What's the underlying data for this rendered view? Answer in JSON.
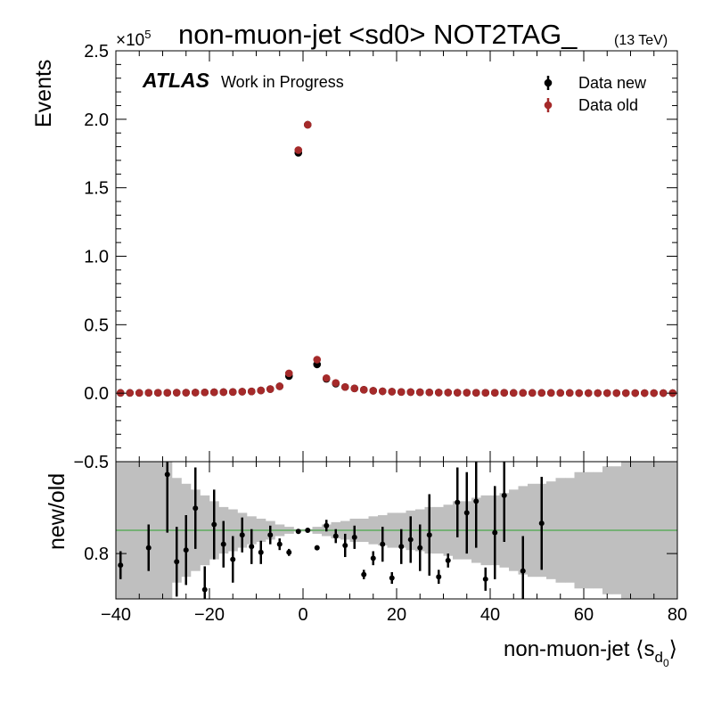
{
  "chart_data": [
    {
      "type": "scatter",
      "title": "non-muon-jet <sd0> NOT2TAG_",
      "title_suffix": "(13 TeV)",
      "ylabel": "Events",
      "y_multiplier": {
        "text": "×10",
        "power": "5"
      },
      "annotations": [
        "ATLAS",
        "Work in Progress"
      ],
      "legend": "upper right",
      "xlim": [
        -40,
        80
      ],
      "xticks": [
        {
          "value": -40,
          "label": "−40"
        },
        {
          "value": -20,
          "label": "−20"
        },
        0,
        20,
        40,
        60,
        80
      ],
      "ylim": [
        -0.5,
        2.5
      ],
      "yticks": [
        {
          "value": -0.5,
          "label": "−0.5"
        },
        {
          "value": 0,
          "label": "0.0"
        },
        0.5,
        {
          "value": 1,
          "label": "1.0"
        },
        1.5,
        {
          "value": 2,
          "label": "2.0"
        },
        2.5
      ],
      "x": [
        -39,
        -37,
        -35,
        -33,
        -31,
        -29,
        -27,
        -25,
        -23,
        -21,
        -19,
        -17,
        -15,
        -13,
        -11,
        -9,
        -7,
        -5,
        -3,
        -1,
        1,
        3,
        5,
        7,
        9,
        11,
        13,
        15,
        17,
        19,
        21,
        23,
        25,
        27,
        29,
        31,
        33,
        35,
        37,
        39,
        41,
        43,
        45,
        47,
        49,
        51,
        53,
        55,
        57,
        59,
        61,
        63,
        65,
        67,
        69,
        71,
        73,
        75,
        77,
        79
      ],
      "series": [
        {
          "name": "Data new",
          "color": "#000000",
          "values": [
            0.002,
            0.002,
            0.002,
            0.003,
            0.003,
            0.003,
            0.004,
            0.004,
            0.005,
            0.006,
            0.007,
            0.008,
            0.009,
            0.011,
            0.013,
            0.02,
            0.03,
            0.05,
            0.125,
            1.755,
            1.96,
            0.21,
            0.105,
            0.07,
            0.045,
            0.035,
            0.025,
            0.018,
            0.014,
            0.011,
            0.009,
            0.008,
            0.007,
            0.006,
            0.005,
            0.005,
            0.004,
            0.004,
            0.003,
            0.003,
            0.003,
            0.003,
            0.002,
            0.002,
            0.002,
            0.002,
            0.002,
            0.002,
            0.002,
            0.001,
            0.001,
            0.001,
            0.001,
            0.001,
            0.001,
            0.001,
            0.001,
            0.001,
            0.001,
            0.001
          ]
        },
        {
          "name": "Data old",
          "color": "#a52a2a",
          "values": [
            0.002,
            0.002,
            0.002,
            0.003,
            0.003,
            0.003,
            0.004,
            0.004,
            0.005,
            0.006,
            0.007,
            0.008,
            0.009,
            0.011,
            0.013,
            0.02,
            0.03,
            0.05,
            0.145,
            1.775,
            1.96,
            0.245,
            0.11,
            0.075,
            0.045,
            0.035,
            0.025,
            0.018,
            0.014,
            0.011,
            0.009,
            0.008,
            0.007,
            0.006,
            0.005,
            0.005,
            0.004,
            0.004,
            0.003,
            0.003,
            0.003,
            0.003,
            0.002,
            0.002,
            0.002,
            0.002,
            0.002,
            0.002,
            0.002,
            0.001,
            0.001,
            0.001,
            0.001,
            0.001,
            0.001,
            0.001,
            0.001,
            0.001,
            0.001,
            0.001
          ]
        }
      ]
    },
    {
      "type": "ratio",
      "ylabel": "new/old",
      "xlabel": {
        "text": "non-muon-jet ⟨s",
        "sub": "d",
        "subsub": "0",
        "close": "⟩"
      },
      "xlim": [
        -40,
        80
      ],
      "xticks": [
        {
          "value": -40,
          "label": "−40"
        },
        {
          "value": -20,
          "label": "−20"
        },
        0,
        20,
        40,
        60,
        80
      ],
      "ylim": [
        0.41,
        1.59
      ],
      "yticks": [
        0.8
      ],
      "reference": 1,
      "reference_color": "#2ca02c",
      "color": "#000000",
      "band_color": "#bfbfbf",
      "x": [
        -39,
        -37,
        -35,
        -33,
        -31,
        -29,
        -27,
        -25,
        -23,
        -21,
        -19,
        -17,
        -15,
        -13,
        -11,
        -9,
        -7,
        -5,
        -3,
        -1,
        1,
        3,
        5,
        7,
        9,
        11,
        13,
        15,
        17,
        19,
        21,
        23,
        25,
        27,
        29,
        31,
        33,
        35,
        37,
        39,
        41,
        43,
        45,
        47,
        49,
        51,
        53,
        55,
        57,
        59,
        61,
        63,
        65,
        67,
        69,
        71,
        73,
        75,
        77,
        79
      ],
      "values": [
        0.7,
        null,
        null,
        0.85,
        null,
        1.48,
        0.73,
        0.83,
        1.19,
        0.49,
        1.05,
        0.88,
        0.75,
        0.96,
        0.86,
        0.81,
        0.96,
        0.88,
        0.81,
        0.99,
        1.0,
        0.85,
        1.04,
        0.95,
        0.87,
        0.94,
        0.62,
        0.76,
        0.88,
        0.59,
        0.86,
        0.92,
        0.85,
        0.96,
        0.6,
        0.74,
        1.24,
        1.15,
        1.25,
        0.58,
        0.98,
        1.3,
        null,
        0.65,
        null,
        1.06,
        null,
        null,
        null,
        null,
        null,
        null,
        null,
        null,
        null,
        null,
        null,
        null,
        null,
        null
      ],
      "errors": [
        0.12,
        null,
        null,
        0.2,
        null,
        0.5,
        0.3,
        0.3,
        0.35,
        0.2,
        0.3,
        0.2,
        0.2,
        0.15,
        0.15,
        0.1,
        0.08,
        0.05,
        0.03,
        0.01,
        0.01,
        0.02,
        0.05,
        0.06,
        0.1,
        0.1,
        0.04,
        0.06,
        0.15,
        0.05,
        0.15,
        0.2,
        0.2,
        0.35,
        0.06,
        0.06,
        0.3,
        0.35,
        0.4,
        0.1,
        0.4,
        0.4,
        null,
        0.3,
        null,
        0.4,
        null,
        null,
        null,
        null,
        null,
        null,
        null,
        null,
        null,
        null,
        null,
        null,
        null,
        null
      ],
      "band": [
        0.6,
        0.6,
        0.6,
        0.6,
        0.6,
        0.6,
        0.45,
        0.4,
        0.35,
        0.3,
        0.25,
        0.2,
        0.18,
        0.15,
        0.12,
        0.1,
        0.08,
        0.05,
        0.03,
        0.01,
        0.01,
        0.03,
        0.05,
        0.07,
        0.08,
        0.1,
        0.1,
        0.12,
        0.13,
        0.15,
        0.15,
        0.17,
        0.18,
        0.2,
        0.2,
        0.22,
        0.25,
        0.25,
        0.28,
        0.3,
        0.3,
        0.32,
        0.35,
        0.38,
        0.4,
        0.4,
        0.42,
        0.45,
        0.45,
        0.5,
        0.5,
        0.5,
        0.55,
        0.55,
        0.6,
        0.6,
        0.6,
        0.6,
        0.6,
        0.6
      ]
    }
  ]
}
